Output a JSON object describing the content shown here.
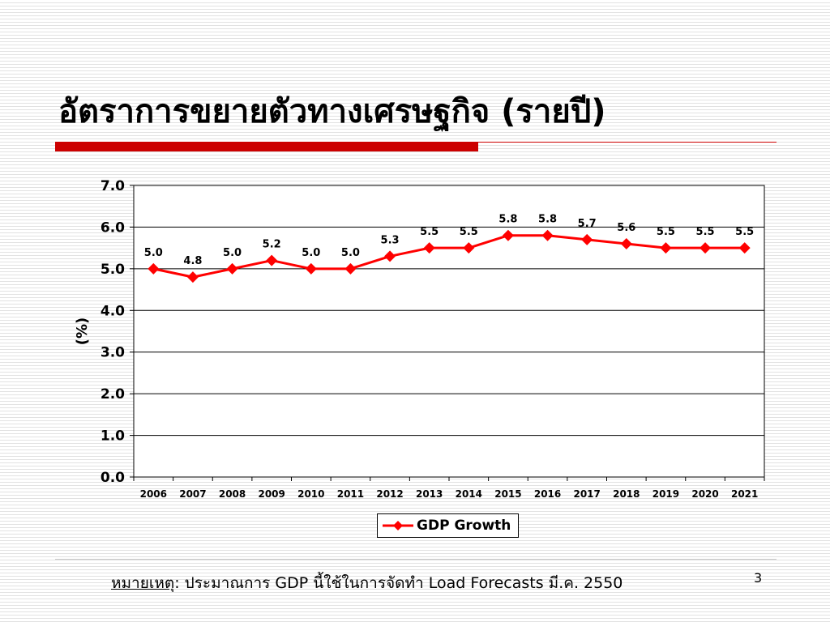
{
  "slide": {
    "title": "อัตราการขยายตัวทางเศรษฐกิจ (รายปี)",
    "footnote_label": "หมายเหตุ",
    "footnote_text": ": ประมาณการ GDP นี้ใช้ในการจัดทำ Load Forecasts มี.ค. 2550",
    "page_number": "3",
    "accent_color": "#cc0000"
  },
  "chart_data": {
    "type": "line",
    "title": "",
    "xlabel": "",
    "ylabel": "(%)",
    "ylim": [
      0,
      7
    ],
    "yticks": [
      "0.0",
      "1.0",
      "2.0",
      "3.0",
      "4.0",
      "5.0",
      "6.0",
      "7.0"
    ],
    "categories": [
      "2006",
      "2007",
      "2008",
      "2009",
      "2010",
      "2011",
      "2012",
      "2013",
      "2014",
      "2015",
      "2016",
      "2017",
      "2018",
      "2019",
      "2020",
      "2021"
    ],
    "series": [
      {
        "name": "GDP Growth",
        "color": "#ff0000",
        "marker": "diamond",
        "values": [
          5.0,
          4.8,
          5.0,
          5.2,
          5.0,
          5.0,
          5.3,
          5.5,
          5.5,
          5.8,
          5.8,
          5.7,
          5.6,
          5.5,
          5.5,
          5.5
        ],
        "labels": [
          "5.0",
          "4.8",
          "5.0",
          "5.2",
          "5.0",
          "5.0",
          "5.3",
          "5.5",
          "5.5",
          "5.8",
          "5.8",
          "5.7",
          "5.6",
          "5.5",
          "5.5",
          "5.5"
        ]
      }
    ],
    "grid": true,
    "legend": "bottom"
  }
}
